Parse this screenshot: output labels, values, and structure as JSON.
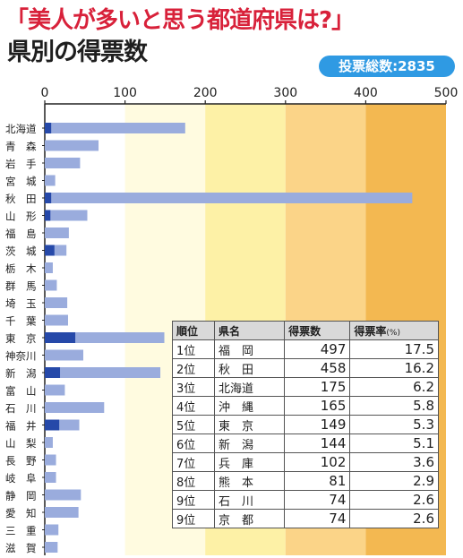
{
  "headline": "「美人が多いと思う都道府県は?」",
  "subhead": "県別の得票数",
  "total_label": "投票総数:2835",
  "chart_data": {
    "type": "bar",
    "orientation": "horizontal",
    "xlim": [
      0,
      500
    ],
    "ticks": [
      "0",
      "100",
      "200",
      "300",
      "400",
      "500"
    ],
    "categories": [
      "北海道",
      "青　森",
      "岩　手",
      "宮　城",
      "秋　田",
      "山　形",
      "福　島",
      "茨　城",
      "栃　木",
      "群　馬",
      "埼　玉",
      "千　葉",
      "東　京",
      "神奈川",
      "新　潟",
      "富　山",
      "石　川",
      "福　井",
      "山　梨",
      "長　野",
      "岐　阜",
      "静　岡",
      "愛　知",
      "三　重",
      "滋　賀"
    ],
    "values": [
      175,
      67,
      44,
      13,
      458,
      53,
      30,
      27,
      10,
      15,
      28,
      29,
      149,
      48,
      144,
      25,
      74,
      43,
      10,
      14,
      14,
      45,
      42,
      17,
      16
    ],
    "highlight_values": [
      8,
      0,
      0,
      0,
      8,
      7,
      0,
      12,
      0,
      0,
      0,
      0,
      38,
      0,
      19,
      0,
      0,
      18,
      0,
      0,
      0,
      0,
      0,
      0,
      0
    ],
    "background_bands": [
      {
        "from": 0,
        "to": 100,
        "color": "#ffffff"
      },
      {
        "from": 100,
        "to": 200,
        "color": "#fffbe0"
      },
      {
        "from": 200,
        "to": 300,
        "color": "#fdf1a6"
      },
      {
        "from": 300,
        "to": 400,
        "color": "#fbd488"
      },
      {
        "from": 400,
        "to": 500,
        "color": "#f3b851"
      }
    ],
    "bar_color": "#9aacdd",
    "highlight_color": "#2649a9",
    "table": {
      "headers": [
        "順位",
        "県名",
        "得票数",
        "得票率"
      ],
      "rate_unit": "(%)",
      "rows": [
        [
          "1位",
          "福　岡",
          "497",
          "17.5"
        ],
        [
          "2位",
          "秋　田",
          "458",
          "16.2"
        ],
        [
          "3位",
          "北海道",
          "175",
          "6.2"
        ],
        [
          "4位",
          "沖　縄",
          "165",
          "5.8"
        ],
        [
          "5位",
          "東　京",
          "149",
          "5.3"
        ],
        [
          "6位",
          "新　潟",
          "144",
          "5.1"
        ],
        [
          "7位",
          "兵　庫",
          "102",
          "3.6"
        ],
        [
          "8位",
          "熊　本",
          "81",
          "2.9"
        ],
        [
          "9位",
          "石　川",
          "74",
          "2.6"
        ],
        [
          "9位",
          "京　都",
          "74",
          "2.6"
        ]
      ]
    }
  }
}
